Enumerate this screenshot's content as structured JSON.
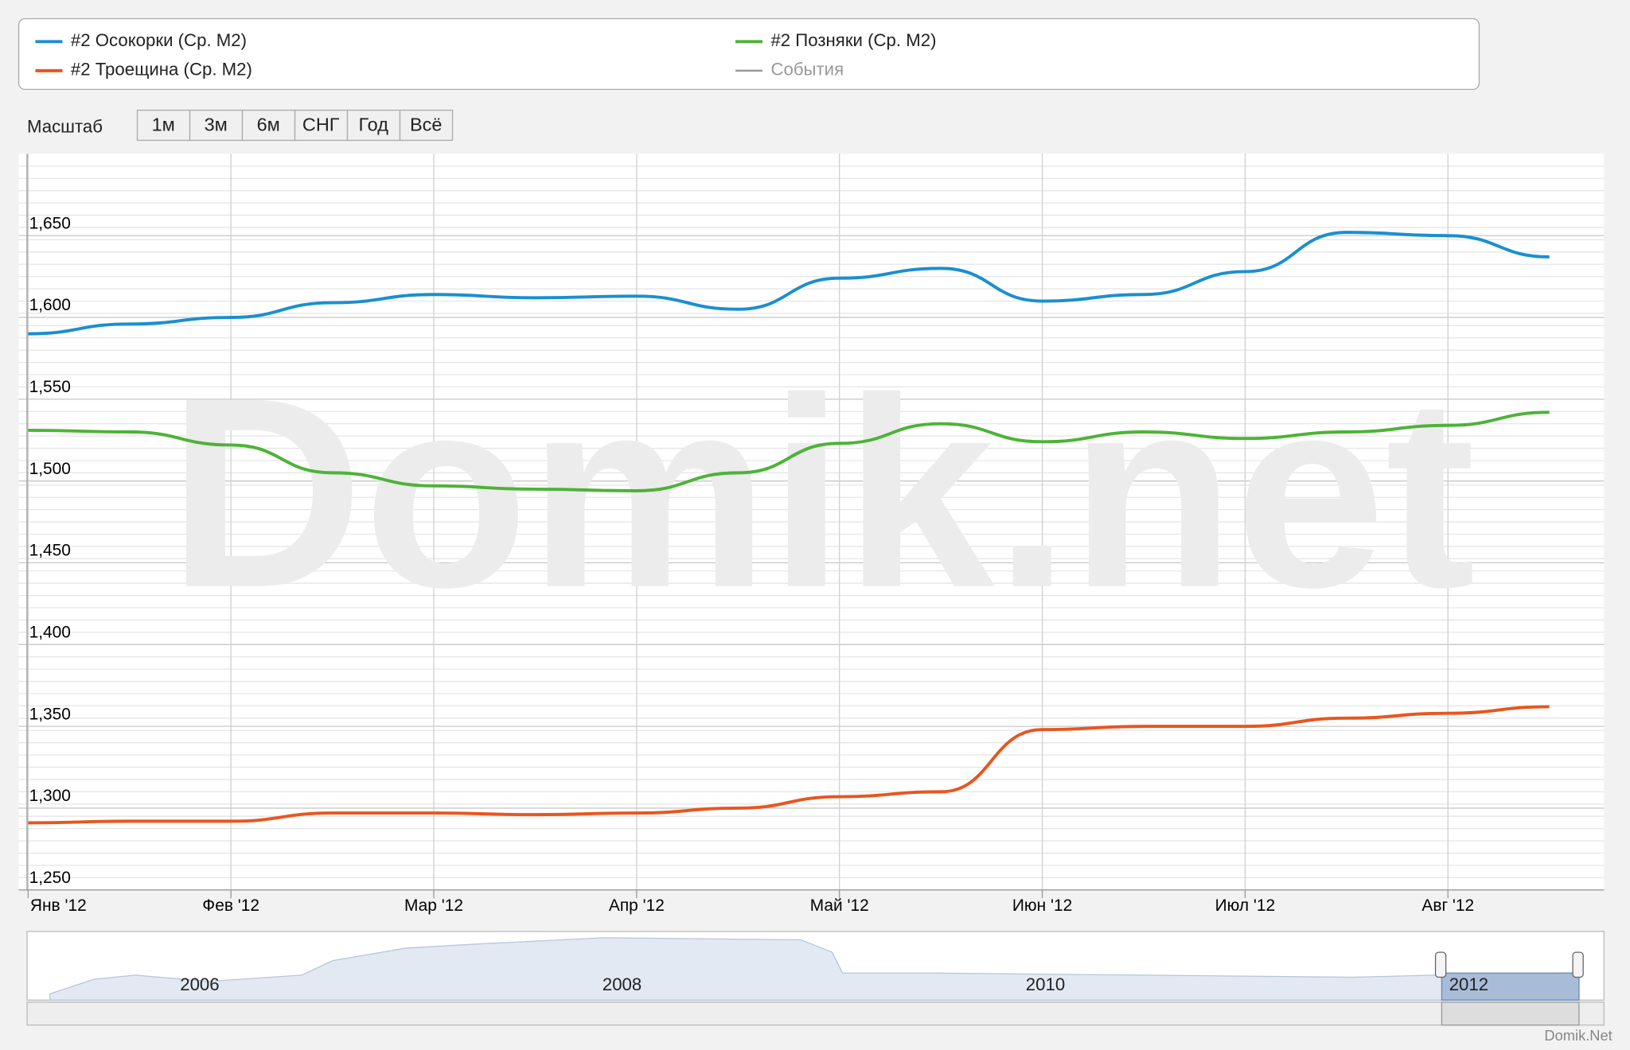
{
  "chart_data": {
    "type": "line",
    "watermark": "Domik.net",
    "credit": "Domik.Net",
    "scale_label": "Масштаб",
    "buttons": [
      "1м",
      "3м",
      "6м",
      "СНГ",
      "Год",
      "Всё"
    ],
    "events_label": "События",
    "navigator_labels": [
      "2006",
      "2008",
      "2010",
      "2012"
    ],
    "categories": [
      "Янв '12",
      null,
      "Фев '12",
      null,
      "Мар '12",
      null,
      "Апр '12",
      null,
      "Май '12",
      null,
      "Июн '12",
      null,
      "Июл '12",
      null,
      "Авг '12",
      null
    ],
    "series": [
      {
        "name": "#2 Осокорки (Ср. М2)",
        "color": "#1a8fd0",
        "values": [
          1590,
          1596,
          1600,
          1609,
          1614,
          1612,
          1613,
          1605,
          1624,
          1630,
          1610,
          1614,
          1628,
          1652,
          1650,
          1637
        ]
      },
      {
        "name": "#2 Позняки (Ср. М2)",
        "color": "#4cb336",
        "values": [
          1531,
          1530,
          1522,
          1505,
          1497,
          1495,
          1494,
          1505,
          1523,
          1535,
          1524,
          1530,
          1526,
          1530,
          1534,
          1542
        ]
      },
      {
        "name": "#2 Троещина (Ср. М2)",
        "color": "#e8561e",
        "values": [
          1291,
          1292,
          1292,
          1297,
          1297,
          1296,
          1297,
          1300,
          1307,
          1310,
          1348,
          1350,
          1350,
          1355,
          1358,
          1362
        ]
      }
    ],
    "ylim": [
      1250,
      1700
    ],
    "yticks": [
      {
        "value": 1250,
        "label": "1,250"
      },
      {
        "value": 1300,
        "label": "1,300"
      },
      {
        "value": 1350,
        "label": "1,350"
      },
      {
        "value": 1400,
        "label": "1,400"
      },
      {
        "value": 1450,
        "label": "1,450"
      },
      {
        "value": 1500,
        "label": "1,500"
      },
      {
        "value": 1550,
        "label": "1,550"
      },
      {
        "value": 1600,
        "label": "1,600"
      },
      {
        "value": 1650,
        "label": "1,650"
      }
    ],
    "grid": true
  }
}
